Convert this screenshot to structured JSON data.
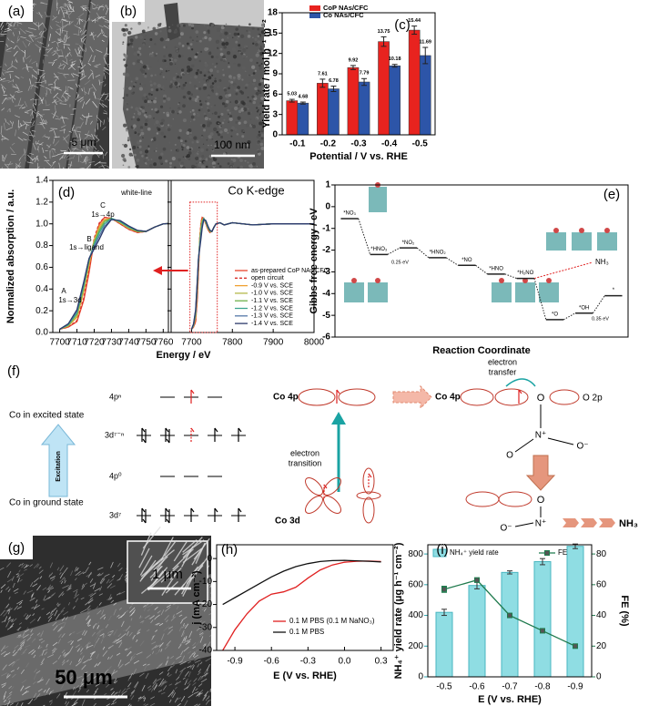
{
  "figure_panels": {
    "a": {
      "label": "(a)",
      "scale_bar": "5 μm"
    },
    "b": {
      "label": "(b)",
      "scale_bar": "100 nm"
    },
    "f": {
      "label": "(f)",
      "excited_state": "Co in excited state",
      "ground_state": "Co in ground state",
      "excitation": "Excitation",
      "level_4p_excited": "4pⁿ",
      "level_3d_excited": "3d⁷⁻ⁿ",
      "level_4p_ground": "4p⁰",
      "level_3d_ground": "3d⁷",
      "co_4p": "Co 4p",
      "co_3d": "Co 3d",
      "electron_transition": [
        "electron",
        "transition"
      ],
      "co_4p_bonded": "Co 4p",
      "electron_transfer": [
        "electron",
        "transfer"
      ],
      "o_2p": "O 2p",
      "oxygen": "O",
      "nitrogen": "N⁺",
      "oxygen_minus": "O⁻",
      "nh3": "NH₃"
    },
    "g": {
      "label": "(g)",
      "scale_bar": "50 μm",
      "inset_scale_bar": "1 μm"
    }
  },
  "chart_data": [
    {
      "type": "bar",
      "panel_label": "(c)",
      "x_label": "Potential / V vs. RHE",
      "y_label": "Yield rate / mol h⁻¹ m⁻²",
      "categories": [
        "-0.1",
        "-0.2",
        "-0.3",
        "-0.4",
        "-0.5"
      ],
      "ylim": [
        0,
        18
      ],
      "yticks": [
        0,
        3,
        6,
        9,
        12,
        15,
        18
      ],
      "legend": "top",
      "series": [
        {
          "name": "CoP NAs/CFC",
          "color": "#e8231f",
          "values": [
            5.03,
            7.61,
            9.92,
            13.75,
            15.44
          ],
          "errors": [
            0.2,
            0.6,
            0.3,
            0.7,
            0.6
          ]
        },
        {
          "name": "Co NAs/CFC",
          "color": "#2d55a8",
          "values": [
            4.68,
            6.78,
            7.79,
            10.18,
            11.69
          ],
          "errors": [
            0.15,
            0.4,
            0.5,
            0.2,
            1.2
          ]
        }
      ]
    },
    {
      "type": "line",
      "panel_label": "(d)",
      "x_label": "Energy / eV",
      "y_label": "Normalized absorption / a.u.",
      "ylim": [
        0,
        1.4
      ],
      "yticks": [
        {
          "value": 0,
          "label": "0.0"
        },
        0.2,
        0.4,
        0.6,
        0.8,
        {
          "value": 1,
          "label": "1.0"
        },
        1.2,
        1.4
      ],
      "subplots": [
        {
          "xlim": [
            7696,
            7763
          ],
          "xticks": [
            7700,
            7710,
            7720,
            7730,
            7740,
            7750,
            7760
          ],
          "annotations": [
            "white-line",
            "C",
            "1s→4p",
            "B",
            "1s→ligand",
            "A",
            "1s→3d"
          ]
        },
        {
          "title": "Co K-edge",
          "xlim": [
            7650,
            8000
          ],
          "xticks": [
            7700,
            7800,
            7900,
            8000
          ]
        }
      ],
      "x": [
        7700,
        7705,
        7710,
        7714,
        7717,
        7720,
        7723,
        7726,
        7730,
        7735,
        7740,
        7745,
        7750,
        7755,
        7760,
        7770,
        7780,
        7800,
        7850,
        7900,
        7950,
        8000
      ],
      "series": [
        {
          "name": "as-prepared CoP NAs/CFC",
          "color": "#e8452c",
          "dash": false,
          "values": [
            0.03,
            0.05,
            0.1,
            0.3,
            0.55,
            0.85,
            1.0,
            1.06,
            1.05,
            1.0,
            0.95,
            0.92,
            0.93,
            0.97,
            1.0,
            1.01,
            0.99,
            1.01,
            0.99,
            1.0,
            1.0,
            1.0
          ]
        },
        {
          "name": "open circuit",
          "color": "#d9302a",
          "dash": true,
          "values": [
            0.03,
            0.05,
            0.11,
            0.32,
            0.58,
            0.87,
            1.01,
            1.06,
            1.05,
            1.0,
            0.95,
            0.92,
            0.93,
            0.97,
            1.0,
            1.01,
            0.99,
            1.01,
            0.99,
            1.0,
            1.0,
            1.0
          ]
        },
        {
          "name": "-0.9 V vs. SCE",
          "color": "#f0a030",
          "dash": false,
          "values": [
            0.03,
            0.06,
            0.14,
            0.38,
            0.62,
            0.85,
            0.98,
            1.04,
            1.05,
            1.01,
            0.96,
            0.93,
            0.93,
            0.97,
            1.0,
            1.01,
            0.99,
            1.01,
            0.99,
            1.0,
            1.0,
            1.0
          ]
        },
        {
          "name": "-1.0 V vs. SCE",
          "color": "#b5b84a",
          "dash": false,
          "values": [
            0.03,
            0.06,
            0.15,
            0.4,
            0.64,
            0.84,
            0.96,
            1.03,
            1.05,
            1.01,
            0.96,
            0.93,
            0.93,
            0.97,
            1.0,
            1.01,
            0.99,
            1.01,
            0.99,
            1.0,
            1.0,
            1.0
          ]
        },
        {
          "name": "-1.1 V vs. SCE",
          "color": "#6fb04a",
          "dash": false,
          "values": [
            0.03,
            0.07,
            0.17,
            0.42,
            0.66,
            0.83,
            0.94,
            1.02,
            1.05,
            1.02,
            0.97,
            0.93,
            0.93,
            0.97,
            1.0,
            1.01,
            0.99,
            1.01,
            0.99,
            1.0,
            1.0,
            1.0
          ]
        },
        {
          "name": "-1.2 V vs. SCE",
          "color": "#3aa38f",
          "dash": false,
          "values": [
            0.03,
            0.07,
            0.18,
            0.44,
            0.67,
            0.81,
            0.92,
            1.0,
            1.05,
            1.02,
            0.97,
            0.94,
            0.93,
            0.97,
            1.0,
            1.01,
            0.99,
            1.01,
            0.99,
            1.0,
            1.0,
            1.0
          ]
        },
        {
          "name": "-1.3 V vs. SCE",
          "color": "#5577a8",
          "dash": false,
          "values": [
            0.03,
            0.08,
            0.2,
            0.46,
            0.68,
            0.79,
            0.89,
            0.98,
            1.04,
            1.03,
            0.98,
            0.94,
            0.93,
            0.97,
            1.0,
            1.01,
            0.99,
            1.01,
            0.99,
            1.0,
            1.0,
            1.0
          ]
        },
        {
          "name": "-1.4 V vs. SCE",
          "color": "#2c3a6b",
          "dash": false,
          "values": [
            0.03,
            0.08,
            0.21,
            0.47,
            0.68,
            0.77,
            0.86,
            0.96,
            1.04,
            1.03,
            0.98,
            0.94,
            0.93,
            0.97,
            1.0,
            1.01,
            0.99,
            1.01,
            0.99,
            1.0,
            1.0,
            1.0
          ]
        }
      ]
    },
    {
      "type": "energy_profile",
      "panel_label": "(e)",
      "x_label": "Reaction Coordinate",
      "y_label": "Gibbs free energy / eV",
      "ylim": [
        -6,
        1
      ],
      "yticks": [
        1,
        0,
        -1,
        -2,
        -3,
        -4,
        -5,
        -6
      ],
      "color": "#222222",
      "steps": [
        {
          "label": "*NO₃",
          "value": -0.55
        },
        {
          "label": "*HNO₃",
          "value": -2.2
        },
        {
          "label": "*NO₂",
          "value": -1.9
        },
        {
          "label": "*HNO₂",
          "value": -2.35
        },
        {
          "label": "*NO",
          "value": -2.7
        },
        {
          "label": "*HNO",
          "value": -3.1
        },
        {
          "label": "*H₂NO",
          "value": -3.3
        },
        {
          "label": "*O",
          "value": -5.2
        },
        {
          "label": "*OH",
          "value": -4.9
        },
        {
          "label": "*",
          "value": -4.1
        }
      ],
      "annotations": [
        {
          "text": "0.25 eV",
          "color": "#e8231f"
        },
        {
          "text": "NH₃",
          "color": "#e8231f"
        },
        {
          "text": "0.35 eV",
          "color": "#2a9a4a"
        }
      ]
    },
    {
      "type": "line",
      "panel_label": "(h)",
      "x_label": "E (V vs. RHE)",
      "y_label": "j (mA cm⁻²)",
      "xlim": [
        -1.05,
        0.4
      ],
      "xticks": [
        -0.9,
        -0.6,
        -0.3,
        {
          "value": 0,
          "label": "0.0"
        },
        0.3
      ],
      "ylim": [
        -40,
        6
      ],
      "yticks": [
        0,
        -10,
        -20,
        -30,
        -40
      ],
      "x": [
        -1.0,
        -0.9,
        -0.8,
        -0.7,
        -0.6,
        -0.5,
        -0.4,
        -0.3,
        -0.2,
        -0.1,
        0.0,
        0.1,
        0.2,
        0.3
      ],
      "series": [
        {
          "name": "0.1 M PBS (0.1 M NaNO₃)",
          "color": "#e02020",
          "dash": false,
          "values": [
            -40,
            -31,
            -24,
            -18.5,
            -15.5,
            -14.5,
            -12.5,
            -8.5,
            -5,
            -2.8,
            -1.6,
            -1.2,
            -1.1,
            -1.3
          ]
        },
        {
          "name": "0.1 M PBS",
          "color": "#111111",
          "dash": false,
          "values": [
            -20,
            -17,
            -14,
            -11,
            -8,
            -5.5,
            -3.5,
            -2.2,
            -1.3,
            -0.9,
            -0.8,
            -1,
            -1.2,
            -1.5
          ]
        }
      ]
    },
    {
      "type": "bar_line",
      "panel_label": "(i)",
      "x_label": "E (V vs. RHE)",
      "y_label": "NH₄⁺ yield rate (μg h⁻¹ cm⁻²)",
      "y2_label": "FE (%)",
      "categories": [
        "-0.5",
        "-0.6",
        "-0.7",
        "-0.8",
        "-0.9"
      ],
      "ylim": [
        0,
        860
      ],
      "yticks": [
        0,
        200,
        400,
        600,
        800
      ],
      "y2lim": [
        0,
        86
      ],
      "y2ticks": [
        0,
        20,
        40,
        60,
        80
      ],
      "series": [
        {
          "name": "NH₄⁺ yield rate",
          "color": "#8fdde3",
          "values": [
            420,
            595,
            680,
            750,
            850
          ],
          "errors": [
            20,
            22,
            10,
            20,
            15
          ]
        },
        {
          "name": "FE",
          "color": "#1f7a4d",
          "axis": "y2",
          "values": [
            57,
            63,
            40,
            30,
            20
          ],
          "errors": [
            2,
            1.5,
            0.5,
            0.5,
            0.5
          ]
        }
      ]
    }
  ]
}
